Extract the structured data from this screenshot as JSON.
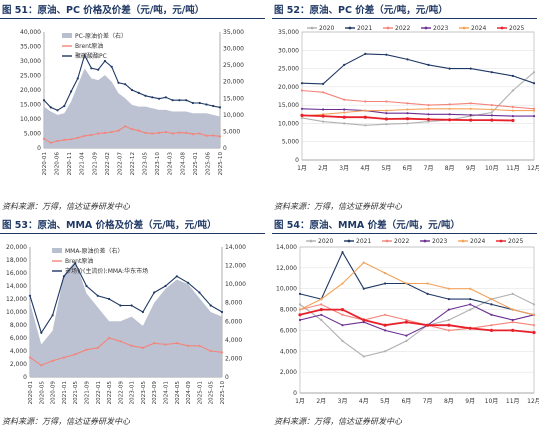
{
  "charts": [
    {
      "title": "图 51：原油、PC 价格及价差（元/吨，元/吨）",
      "source": "资料来源：万得，信达证券研发中心",
      "legend": [
        "PC-原油价差（右）",
        "Brent原油",
        "聚碳酸酯PC"
      ],
      "left_ticks": [
        "0",
        "5,000",
        "10,000",
        "15,000",
        "20,000",
        "25,000",
        "30,000",
        "35,000",
        "40,000"
      ],
      "right_ticks": [
        "0",
        "5,000",
        "10,000",
        "15,000",
        "20,000",
        "25,000",
        "30,000",
        "35,000"
      ],
      "x_ticks": [
        "2020-01",
        "2020-06",
        "2020-11",
        "2021-04",
        "2021-09",
        "2022-02",
        "2022-07",
        "2022-12",
        "2023-05",
        "2023-10",
        "2024-03",
        "2024-08",
        "2025-01",
        "2025-06",
        "2025-10"
      ]
    },
    {
      "title": "图 52：原油、PC 价差（元/吨，元/吨）",
      "source": "资料来源：万得，信达证券研发中心",
      "legend": [
        "2020",
        "2021",
        "2022",
        "2023",
        "2024",
        "2025"
      ],
      "left_ticks": [
        "0",
        "5,000",
        "10,000",
        "15,000",
        "20,000",
        "25,000",
        "30,000",
        "35,000"
      ],
      "x_ticks": [
        "1月",
        "2月",
        "3月",
        "4月",
        "5月",
        "6月",
        "7月",
        "8月",
        "9月",
        "10月",
        "11月",
        "12月"
      ]
    },
    {
      "title": "图 53：原油、MMA 价格及价差（元/吨，元/吨）",
      "source": "资料来源：万得，信达证券研发中心",
      "legend": [
        "MMA-原油价差（右）",
        "Brent原油",
        "市场价(主流价):MMA:华东市场"
      ],
      "left_ticks": [
        "0",
        "2,000",
        "4,000",
        "6,000",
        "8,000",
        "10,000",
        "12,000",
        "14,000",
        "16,000",
        "18,000",
        "20,000"
      ],
      "right_ticks": [
        "0",
        "2,000",
        "4,000",
        "6,000",
        "8,000",
        "10,000",
        "12,000",
        "14,000"
      ],
      "x_ticks": [
        "2020-01",
        "2020-05",
        "2020-09",
        "2021-01",
        "2021-05",
        "2021-09",
        "2022-01",
        "2022-05",
        "2022-09",
        "2023-01",
        "2023-05",
        "2023-09",
        "2024-01",
        "2024-05",
        "2024-09",
        "2025-01",
        "2025-05",
        "2025-10"
      ]
    },
    {
      "title": "图 54：原油、MMA 价差（元/吨，元/吨）",
      "source": "资料来源：万得，信达证券研发中心",
      "legend": [
        "2020",
        "2021",
        "2022",
        "2023",
        "2024",
        "2025"
      ],
      "left_ticks": [
        "0",
        "2,000",
        "4,000",
        "6,000",
        "8,000",
        "10,000",
        "12,000",
        "14,000"
      ],
      "x_ticks": [
        "1月",
        "2月",
        "3月",
        "4月",
        "5月",
        "6月",
        "7月",
        "8月",
        "9月",
        "10月",
        "11月",
        "12月"
      ]
    }
  ],
  "chart_data": [
    {
      "type": "area",
      "title": "图 51：原油、PC 价格及价差（元/吨，元/吨）",
      "ylim": [
        0,
        40000
      ],
      "y2lim": [
        0,
        35000
      ],
      "x": [
        "2020-01",
        "2020-03",
        "2020-06",
        "2020-09",
        "2020-11",
        "2021-01",
        "2021-03",
        "2021-05",
        "2021-07",
        "2021-09",
        "2021-11",
        "2022-01",
        "2022-04",
        "2022-07",
        "2022-10",
        "2023-01",
        "2023-04",
        "2023-07",
        "2023-10",
        "2024-01",
        "2024-04",
        "2024-07",
        "2024-10",
        "2025-01",
        "2025-04",
        "2025-07",
        "2025-10"
      ],
      "series": [
        {
          "name": "PC-原油价差（右）",
          "type": "area",
          "axis": "right",
          "color": "#b8bfcf",
          "values": [
            12500,
            11000,
            10000,
            10500,
            14000,
            19000,
            24000,
            21000,
            20500,
            22000,
            20000,
            16500,
            15000,
            13000,
            12500,
            12500,
            12000,
            11500,
            11500,
            11000,
            11000,
            11000,
            10500,
            10500,
            10500,
            10000,
            9500
          ]
        },
        {
          "name": "Brent原油",
          "type": "line",
          "axis": "left",
          "color": "#f4847a",
          "values": [
            3200,
            1800,
            2400,
            2800,
            3000,
            3500,
            4200,
            4500,
            5000,
            5200,
            5500,
            6000,
            7500,
            6500,
            6000,
            5200,
            5000,
            5200,
            5500,
            5000,
            5300,
            5200,
            4800,
            5000,
            4200,
            4300,
            4000
          ]
        },
        {
          "name": "聚碳酸酯PC",
          "type": "line",
          "axis": "left",
          "color": "#1f3864",
          "values": [
            16500,
            14000,
            13000,
            14500,
            19500,
            24000,
            32000,
            27500,
            27000,
            30000,
            28000,
            22500,
            22000,
            20000,
            19000,
            18000,
            17500,
            17000,
            17500,
            16500,
            16500,
            16500,
            15500,
            15500,
            15000,
            14500,
            14000
          ]
        }
      ]
    },
    {
      "type": "line",
      "title": "图 52：原油、PC 价差（元/吨，元/吨）",
      "ylim": [
        0,
        35000
      ],
      "categories": [
        "1月",
        "2月",
        "3月",
        "4月",
        "5月",
        "6月",
        "7月",
        "8月",
        "9月",
        "10月",
        "11月",
        "12月"
      ],
      "series": [
        {
          "name": "2020",
          "color": "#b0b0b0",
          "values": [
            11500,
            10500,
            10000,
            9500,
            9800,
            10000,
            10500,
            11000,
            12000,
            13000,
            19000,
            24000
          ]
        },
        {
          "name": "2021",
          "color": "#1f3864",
          "values": [
            21000,
            20800,
            26000,
            29000,
            28800,
            27500,
            26000,
            25000,
            25000,
            24000,
            23000,
            21000
          ]
        },
        {
          "name": "2022",
          "color": "#f4847a",
          "values": [
            19000,
            18500,
            16500,
            16000,
            16000,
            15500,
            15000,
            15200,
            15500,
            15000,
            14500,
            14000
          ]
        },
        {
          "name": "2023",
          "color": "#6a2d91",
          "values": [
            14000,
            13800,
            13800,
            13500,
            12800,
            12800,
            12500,
            12500,
            12300,
            12200,
            12000,
            12000
          ]
        },
        {
          "name": "2024",
          "color": "#f4a259",
          "values": [
            12000,
            12500,
            13000,
            13500,
            13500,
            13800,
            14000,
            14000,
            14000,
            13800,
            13500,
            13500
          ]
        },
        {
          "name": "2025",
          "color": "#e8202a",
          "values": [
            12200,
            12000,
            11700,
            11700,
            11200,
            11300,
            11100,
            11000,
            10900,
            10900,
            10800,
            null
          ]
        }
      ]
    },
    {
      "type": "area",
      "title": "图 53：原油、MMA 价格及价差（元/吨，元/吨）",
      "ylim": [
        0,
        20000
      ],
      "y2lim": [
        0,
        14000
      ],
      "x": [
        "2020-01",
        "2020-05",
        "2020-09",
        "2021-01",
        "2021-05",
        "2021-09",
        "2022-01",
        "2022-05",
        "2022-09",
        "2023-01",
        "2023-05",
        "2023-09",
        "2024-01",
        "2024-05",
        "2024-09",
        "2025-01",
        "2025-05",
        "2025-10"
      ],
      "series": [
        {
          "name": "MMA-原油价差（右）",
          "type": "area",
          "axis": "right",
          "color": "#b8bfcf",
          "values": [
            8000,
            3500,
            5000,
            11000,
            12500,
            9000,
            7500,
            6000,
            6000,
            6500,
            5500,
            8000,
            9500,
            10500,
            10000,
            8500,
            7000,
            6500
          ]
        },
        {
          "name": "Brent原油",
          "type": "line",
          "axis": "left",
          "color": "#f4847a",
          "values": [
            3000,
            1800,
            2500,
            3000,
            3500,
            4200,
            4500,
            6000,
            5500,
            4800,
            4500,
            5200,
            5000,
            5200,
            4800,
            4800,
            4000,
            3800
          ]
        },
        {
          "name": "市场价(主流价):MMA:华东市场",
          "type": "line",
          "axis": "left",
          "color": "#1f3864",
          "values": [
            12500,
            6800,
            9500,
            15500,
            17500,
            14000,
            12500,
            12000,
            11000,
            11000,
            10000,
            13000,
            14000,
            15500,
            14500,
            13000,
            11000,
            10000
          ]
        }
      ]
    },
    {
      "type": "line",
      "title": "图 54：原油、MMA 价差（元/吨，元/吨）",
      "ylim": [
        0,
        14000
      ],
      "categories": [
        "1月",
        "2月",
        "3月",
        "4月",
        "5月",
        "6月",
        "7月",
        "8月",
        "9月",
        "10月",
        "11月",
        "12月"
      ],
      "series": [
        {
          "name": "2020",
          "color": "#b0b0b0",
          "values": [
            8500,
            7000,
            5000,
            3500,
            4000,
            5000,
            6500,
            7000,
            8000,
            9000,
            9500,
            8500
          ]
        },
        {
          "name": "2021",
          "color": "#1f3864",
          "values": [
            9500,
            9000,
            13500,
            10000,
            10500,
            10500,
            9500,
            9000,
            9000,
            8500,
            8000,
            7500
          ]
        },
        {
          "name": "2022",
          "color": "#f4847a",
          "values": [
            8000,
            8500,
            7500,
            7000,
            7500,
            7000,
            6500,
            6000,
            6200,
            6500,
            6800,
            6500
          ]
        },
        {
          "name": "2023",
          "color": "#6a2d91",
          "values": [
            7000,
            7500,
            6500,
            6800,
            6000,
            5500,
            6500,
            8000,
            8500,
            7500,
            7000,
            7500
          ]
        },
        {
          "name": "2024",
          "color": "#f4a259",
          "values": [
            8000,
            9000,
            10500,
            12500,
            11500,
            10500,
            10500,
            10000,
            10000,
            9000,
            8000,
            7500
          ]
        },
        {
          "name": "2025",
          "color": "#e8202a",
          "values": [
            7500,
            8000,
            8000,
            7000,
            6500,
            6800,
            6500,
            6500,
            6200,
            6000,
            6000,
            5800
          ]
        }
      ]
    }
  ]
}
